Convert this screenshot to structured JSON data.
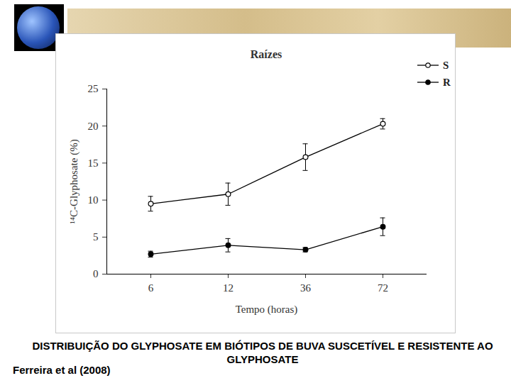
{
  "chart_data": {
    "type": "line",
    "title": "Raízes",
    "x_label": "Tempo (horas)",
    "y_label": "¹⁴C-Glyphosate (%)",
    "categories": [
      "6",
      "12",
      "36",
      "72"
    ],
    "series": [
      {
        "name": "S",
        "color": "#000000",
        "marker": "circle-open",
        "line_style": "solid",
        "values": [
          9.5,
          10.8,
          15.8,
          20.3
        ],
        "error": [
          1.0,
          1.5,
          1.8,
          0.7
        ]
      },
      {
        "name": "R",
        "color": "#000000",
        "marker": "circle",
        "line_style": "solid",
        "values": [
          2.7,
          3.9,
          3.3,
          6.4
        ],
        "error": [
          0.4,
          0.9,
          0.3,
          1.2
        ]
      }
    ],
    "ylim": [
      0,
      25
    ],
    "yticks": [
      0,
      5,
      10,
      15,
      20,
      25
    ],
    "grid": false,
    "legend": "top-right",
    "caption": "DISTRIBUIÇÃO DO GLYPHOSATE EM BIÓTIPOS DE BUVA SUSCETÍVEL E RESISTENTE AO GLYPHOSATE",
    "source": "Ferreira et al (2008)"
  }
}
